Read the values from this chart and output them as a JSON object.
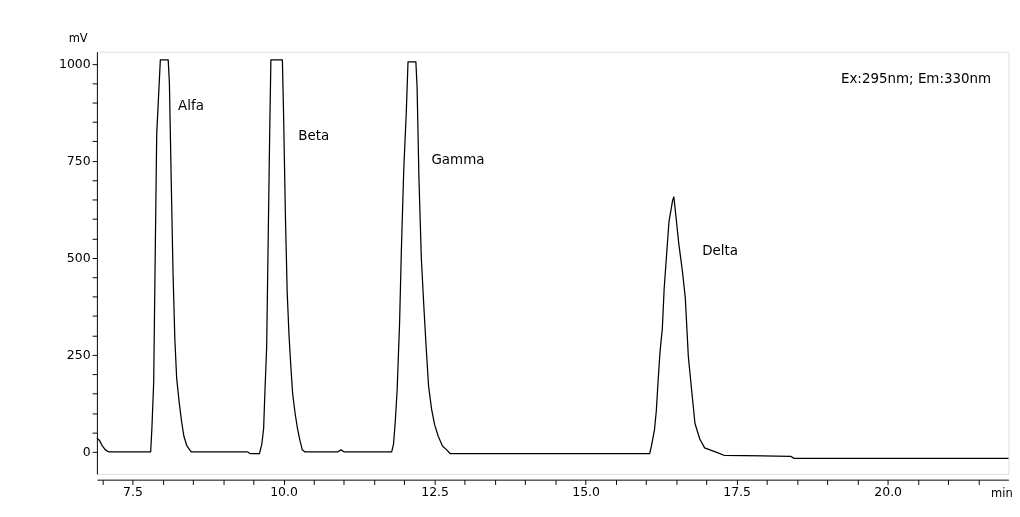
{
  "chart_data": {
    "type": "line",
    "xlabel": "min",
    "ylabel": "mV",
    "x": [
      6.91,
      6.95,
      7.0,
      7.05,
      7.1,
      7.8,
      7.82,
      7.85,
      7.87,
      7.9,
      7.96,
      8.09,
      8.11,
      8.14,
      8.17,
      8.2,
      8.23,
      8.27,
      8.31,
      8.35,
      8.4,
      8.47,
      9.4,
      9.45,
      9.6,
      9.64,
      9.67,
      9.69,
      9.72,
      9.74,
      9.77,
      9.79,
      9.98,
      10.0,
      10.03,
      10.06,
      10.09,
      10.12,
      10.15,
      10.19,
      10.23,
      10.27,
      10.31,
      10.35,
      10.9,
      10.95,
      11.0,
      11.79,
      11.82,
      11.85,
      11.88,
      11.92,
      11.95,
      11.99,
      12.03,
      12.06,
      12.19,
      12.21,
      12.24,
      12.28,
      12.32,
      12.36,
      12.4,
      12.45,
      12.5,
      12.56,
      12.63,
      12.7,
      12.76,
      16.06,
      16.09,
      16.14,
      16.17,
      16.2,
      16.23,
      16.27,
      16.3,
      16.34,
      16.38,
      16.44,
      16.46,
      16.5,
      16.54,
      16.6,
      16.65,
      16.7,
      16.76,
      16.81,
      16.89,
      16.97,
      17.18,
      17.29,
      18.4,
      18.45,
      22.0
    ],
    "series": [
      {
        "color": "#000000",
        "values": [
          35,
          30,
          15,
          5,
          0,
          0,
          60,
          180,
          440,
          820,
          1010,
          1010,
          950,
          700,
          460,
          290,
          190,
          130,
          80,
          40,
          15,
          0,
          0,
          -5,
          -5,
          20,
          60,
          150,
          270,
          490,
          820,
          1010,
          1010,
          870,
          610,
          410,
          300,
          220,
          150,
          100,
          60,
          30,
          5,
          0,
          0,
          5,
          0,
          0,
          20,
          80,
          160,
          330,
          520,
          730,
          870,
          1005,
          1005,
          940,
          710,
          500,
          380,
          270,
          170,
          110,
          70,
          40,
          15,
          5,
          -5,
          -5,
          15,
          57,
          105,
          183,
          255,
          318,
          420,
          507,
          593,
          648,
          657,
          600,
          539,
          468,
          397,
          246,
          151,
          73,
          33,
          10,
          -2,
          -9,
          -12,
          -17,
          -17
        ]
      }
    ],
    "xlim": [
      6.91,
      22.0
    ],
    "xticks": [
      {
        "value": 7.0,
        "label": null
      },
      7.5,
      {
        "value": 8.0,
        "label": null
      },
      {
        "value": 8.5,
        "label": null
      },
      {
        "value": 9.0,
        "label": null
      },
      {
        "value": 9.5,
        "label": null
      },
      {
        "value": 10.0,
        "label": "10.0"
      },
      {
        "value": 10.5,
        "label": null
      },
      {
        "value": 11.0,
        "label": null
      },
      {
        "value": 11.5,
        "label": null
      },
      {
        "value": 12.0,
        "label": null
      },
      12.5,
      {
        "value": 13.0,
        "label": null
      },
      {
        "value": 13.5,
        "label": null
      },
      {
        "value": 14.0,
        "label": null
      },
      {
        "value": 14.5,
        "label": null
      },
      {
        "value": 15.0,
        "label": "15.0"
      },
      {
        "value": 15.5,
        "label": null
      },
      {
        "value": 16.0,
        "label": null
      },
      {
        "value": 16.5,
        "label": null
      },
      {
        "value": 17.0,
        "label": null
      },
      17.5,
      {
        "value": 18.0,
        "label": null
      },
      {
        "value": 18.5,
        "label": null
      },
      {
        "value": 19.0,
        "label": null
      },
      {
        "value": 19.5,
        "label": null
      },
      {
        "value": 20.0,
        "label": "20.0"
      },
      {
        "value": 20.5,
        "label": null
      },
      {
        "value": 21.0,
        "label": null
      },
      {
        "value": 21.5,
        "label": null
      }
    ],
    "ylim": [
      -57,
      1031
    ],
    "yticks": [
      0,
      {
        "value": 50,
        "label": null
      },
      {
        "value": 100,
        "label": null
      },
      {
        "value": 150,
        "label": null
      },
      {
        "value": 200,
        "label": null
      },
      250,
      {
        "value": 300,
        "label": null
      },
      {
        "value": 350,
        "label": null
      },
      {
        "value": 400,
        "label": null
      },
      {
        "value": 450,
        "label": null
      },
      500,
      {
        "value": 550,
        "label": null
      },
      {
        "value": 600,
        "label": null
      },
      {
        "value": 650,
        "label": null
      },
      {
        "value": 700,
        "label": null
      },
      750,
      {
        "value": 800,
        "label": null
      },
      {
        "value": 850,
        "label": null
      },
      {
        "value": 900,
        "label": null
      },
      {
        "value": 950,
        "label": null
      },
      1000
    ],
    "annotations": [
      "Alfa",
      "Beta",
      "Gamma",
      "Delta",
      "Ex:295nm; Em:330nm"
    ]
  }
}
